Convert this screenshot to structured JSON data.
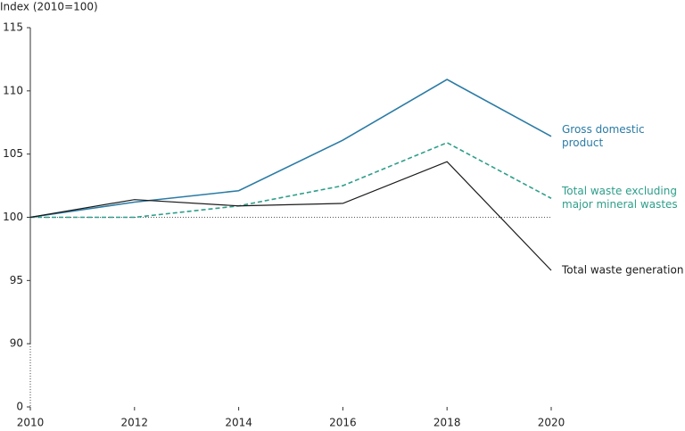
{
  "chart_data": {
    "type": "line",
    "y_label": "Index (2010=100)",
    "x": [
      2010,
      2012,
      2014,
      2016,
      2018,
      2020
    ],
    "xlim": [
      2010,
      2020
    ],
    "xticks": [
      2010,
      2012,
      2014,
      2016,
      2018,
      2020
    ],
    "ylim": [
      0,
      115
    ],
    "yticks": [
      0,
      90,
      95,
      100,
      105,
      110,
      115
    ],
    "ybreak": [
      0,
      90
    ],
    "reference": 100,
    "series": [
      {
        "name": "Gross domestic product",
        "color": "#2a7ba5",
        "dash": false,
        "values": [
          100,
          101.2,
          102.1,
          106.1,
          110.9,
          106.4
        ]
      },
      {
        "name": "Total waste excluding major mineral wastes",
        "color": "#2e9e8a",
        "dash": true,
        "values": [
          100,
          100,
          100.9,
          102.5,
          105.9,
          101.5
        ]
      },
      {
        "name": "Total waste generation",
        "color": "#1a1a1a",
        "dash": false,
        "values": [
          100,
          101.4,
          100.9,
          101.1,
          104.4,
          95.8
        ]
      }
    ]
  }
}
